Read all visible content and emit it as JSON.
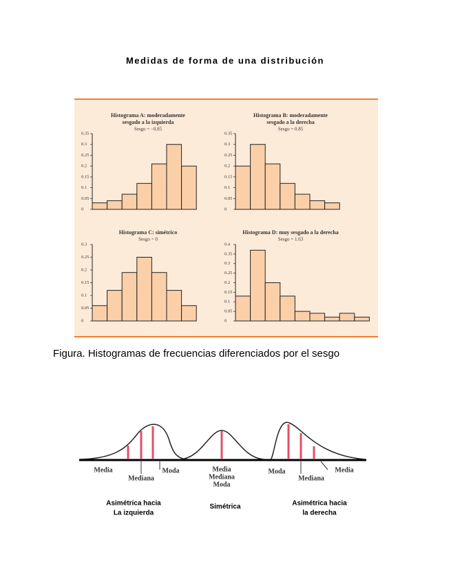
{
  "title": "Medidas de forma de una distribución",
  "figure": {
    "charts": [
      {
        "type": "histogram",
        "title": [
          "Histograma A: moderadamente",
          "sesgado a la izquierda"
        ],
        "subtitle": "Sesgo = −0.85",
        "ylim": [
          0,
          0.35
        ],
        "yticks": [
          0,
          0.05,
          0.1,
          0.15,
          0.2,
          0.25,
          0.3,
          0.35
        ],
        "values": [
          0.03,
          0.04,
          0.07,
          0.12,
          0.21,
          0.3,
          0.2
        ],
        "color": "#fbcfa8"
      },
      {
        "type": "histogram",
        "title": [
          "Histograma B: moderadamente",
          "sesgado a la derecha"
        ],
        "subtitle": "Sesgo = 0.85",
        "ylim": [
          0,
          0.35
        ],
        "yticks": [
          0,
          0.05,
          0.1,
          0.15,
          0.2,
          0.25,
          0.3,
          0.35
        ],
        "values": [
          0.2,
          0.3,
          0.21,
          0.12,
          0.07,
          0.04,
          0.03
        ],
        "color": "#fbcfa8"
      },
      {
        "type": "histogram",
        "title": [
          "Histograma C: simétrico"
        ],
        "subtitle": "Sesgo = 0",
        "ylim": [
          0,
          0.3
        ],
        "yticks": [
          0,
          0.05,
          0.1,
          0.15,
          0.2,
          0.25,
          0.3
        ],
        "values": [
          0.06,
          0.12,
          0.19,
          0.25,
          0.19,
          0.12,
          0.06
        ],
        "color": "#fbcfa8"
      },
      {
        "type": "histogram",
        "title": [
          "Histograma D: muy sesgado a la derecha"
        ],
        "subtitle": "Sesgo = 1.63",
        "ylim": [
          0,
          0.4
        ],
        "yticks": [
          0,
          0.05,
          0.1,
          0.15,
          0.2,
          0.25,
          0.3,
          0.35,
          0.4
        ],
        "values": [
          0.13,
          0.37,
          0.2,
          0.13,
          0.05,
          0.04,
          0.02,
          0.04,
          0.02
        ],
        "color": "#fbcfa8"
      }
    ],
    "caption": "Figura. Histogramas de frecuencias diferenciados por el sesgo"
  },
  "skew_diagram": {
    "left": {
      "labels": [
        "Media",
        "Mediana",
        "Moda"
      ],
      "caption": [
        "Asimétrica hacia",
        "La izquierda"
      ]
    },
    "center": {
      "labels": [
        "Media",
        "Mediana",
        "Moda"
      ],
      "caption": [
        "Simétrica"
      ]
    },
    "right": {
      "labels": [
        "Moda",
        "Mediana",
        "Media"
      ],
      "caption": [
        "Asimétrica hacia",
        "la derecha"
      ]
    }
  }
}
